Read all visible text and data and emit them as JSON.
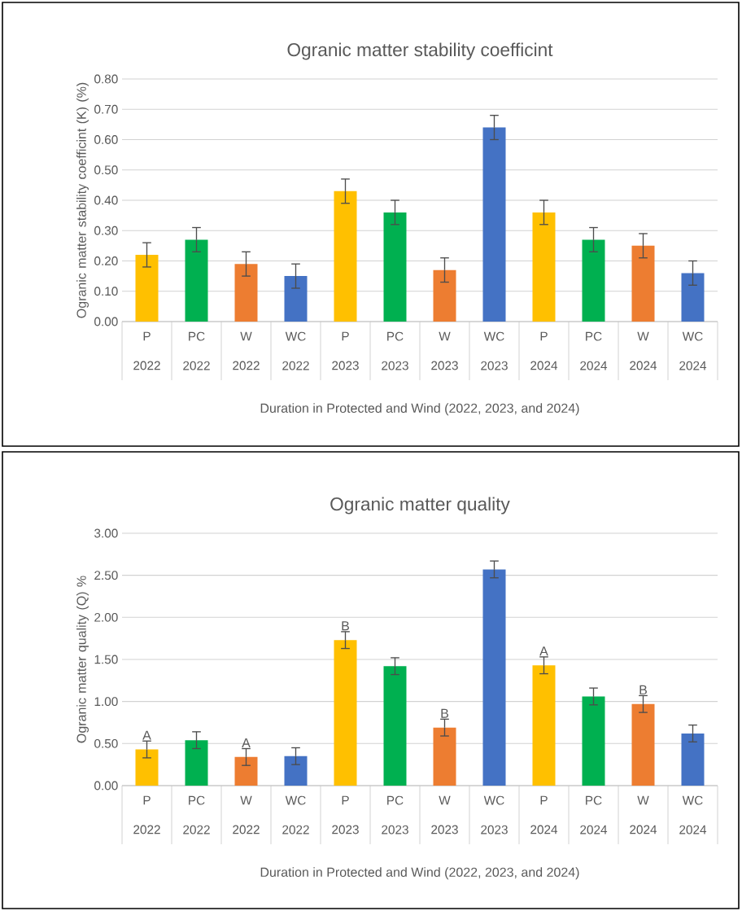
{
  "chart_data": [
    {
      "type": "bar",
      "title": "Ogranic matter stability coefficint",
      "xlabel": "Duration in Protected and Wind (2022, 2023, and 2024)",
      "ylabel": "Ogranic matter  stability coefficint (K) (%)",
      "categories": [
        "P 2022",
        "PC 2022",
        "W 2022",
        "WC 2022",
        "P 2023",
        "PC 2023",
        "W 2023",
        "WC 2023",
        "P 2024",
        "PC 2024",
        "W 2024",
        "WC 2024"
      ],
      "values": [
        0.22,
        0.27,
        0.19,
        0.15,
        0.43,
        0.36,
        0.17,
        0.64,
        0.36,
        0.27,
        0.25,
        0.16
      ],
      "errors": [
        0.04,
        0.04,
        0.04,
        0.04,
        0.04,
        0.04,
        0.04,
        0.04,
        0.04,
        0.04,
        0.04,
        0.04
      ],
      "colors": [
        "#ffc000",
        "#00b050",
        "#ed7d31",
        "#4472c4",
        "#ffc000",
        "#00b050",
        "#ed7d31",
        "#4472c4",
        "#ffc000",
        "#00b050",
        "#ed7d31",
        "#4472c4"
      ],
      "ylim": [
        0,
        0.8
      ],
      "yticks": [
        {
          "value": 0,
          "label": "0.00"
        },
        {
          "value": 0.1,
          "label": "0.10"
        },
        {
          "value": 0.2,
          "label": "0.20"
        },
        {
          "value": 0.3,
          "label": "0.30"
        },
        {
          "value": 0.4,
          "label": "0.40"
        },
        {
          "value": 0.5,
          "label": "0.50"
        },
        {
          "value": 0.6,
          "label": "0.60"
        },
        {
          "value": 0.7,
          "label": "0.70"
        },
        {
          "value": 0.8,
          "label": "0.80"
        }
      ],
      "grid": "y"
    },
    {
      "type": "bar",
      "title": "Ogranic matter  quality",
      "xlabel": "Duration in Protected and Wind (2022, 2023, and 2024)",
      "ylabel": "Ogranic matter  quality (Q) %",
      "categories": [
        "P 2022",
        "PC 2022",
        "W 2022",
        "WC 2022",
        "P 2023",
        "PC 2023",
        "W 2023",
        "WC 2023",
        "P 2024",
        "PC 2024",
        "W 2024",
        "WC 2024"
      ],
      "values": [
        0.43,
        0.54,
        0.34,
        0.35,
        1.73,
        1.42,
        0.69,
        2.57,
        1.43,
        1.06,
        0.97,
        0.62
      ],
      "errors": [
        0.1,
        0.1,
        0.1,
        0.1,
        0.1,
        0.1,
        0.1,
        0.1,
        0.1,
        0.1,
        0.1,
        0.1
      ],
      "colors": [
        "#ffc000",
        "#00b050",
        "#ed7d31",
        "#4472c4",
        "#ffc000",
        "#00b050",
        "#ed7d31",
        "#4472c4",
        "#ffc000",
        "#00b050",
        "#ed7d31",
        "#4472c4"
      ],
      "ylim": [
        0,
        3
      ],
      "yticks": [
        {
          "value": 0,
          "label": "0.00"
        },
        {
          "value": 0.5,
          "label": "0.50"
        },
        {
          "value": 1,
          "label": "1.00"
        },
        {
          "value": 1.5,
          "label": "1.50"
        },
        {
          "value": 2,
          "label": "2.00"
        },
        {
          "value": 2.5,
          "label": "2.50"
        },
        {
          "value": 3,
          "label": "3.00"
        }
      ],
      "annotations": [
        {
          "text": "A",
          "x": "P 2022",
          "y": 0.53
        },
        {
          "text": "A",
          "x": "W 2022",
          "y": 0.44
        },
        {
          "text": "B",
          "x": "P 2023",
          "y": 1.83
        },
        {
          "text": "B",
          "x": "W 2023",
          "y": 0.79
        },
        {
          "text": "A",
          "x": "P 2024",
          "y": 1.53
        },
        {
          "text": "B",
          "x": "W 2024",
          "y": 1.07
        }
      ],
      "grid": "y"
    }
  ]
}
